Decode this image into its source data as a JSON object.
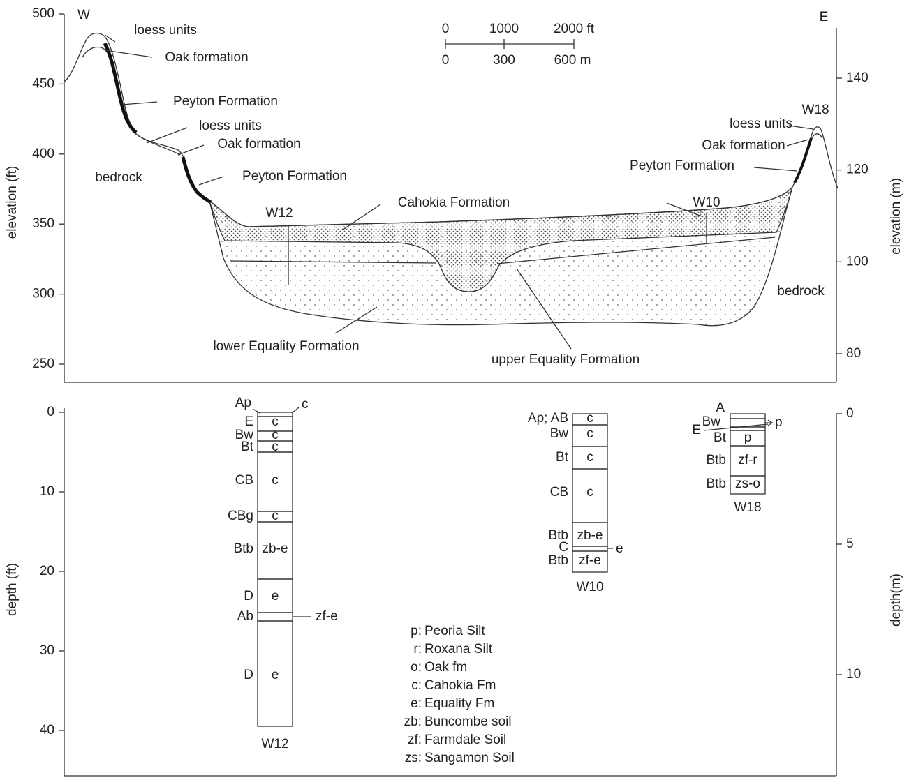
{
  "cross_section": {
    "left_axis": {
      "label": "elevation (ft)",
      "ticks": [
        500,
        450,
        400,
        350,
        300,
        250
      ]
    },
    "right_axis": {
      "label": "elevation (m)",
      "ticks": [
        140,
        120,
        100,
        80
      ]
    },
    "west": "W",
    "east": "E",
    "scale_bar": {
      "feet": [
        "0",
        "1000",
        "2000 ft"
      ],
      "meters": [
        "0",
        "300",
        "600 m"
      ]
    },
    "labels": [
      "loess units",
      "Oak formation",
      "Peyton Formation",
      "loess units",
      "Oak formation",
      "bedrock",
      "Peyton Formation",
      "Cahokia Formation",
      "W12",
      "W10",
      "lower Equality Formation",
      "upper Equality Formation",
      "bedrock",
      "W18",
      "loess units",
      "Oak formation",
      "Peyton Formation"
    ]
  },
  "profiles": {
    "left_axis": {
      "label": "depth (ft)",
      "ticks": [
        0,
        10,
        20,
        30,
        40
      ]
    },
    "right_axis": {
      "label": "depth(m)",
      "ticks": [
        0,
        5,
        10
      ]
    },
    "columns": [
      {
        "name": "W12",
        "horizons": [
          {
            "horizon": "Ap",
            "unit": "c"
          },
          {
            "horizon": "E",
            "unit": "c"
          },
          {
            "horizon": "Bw",
            "unit": "c"
          },
          {
            "horizon": "Bt",
            "unit": "c"
          },
          {
            "horizon": "CB",
            "unit": "c"
          },
          {
            "horizon": "CBg",
            "unit": "c"
          },
          {
            "horizon": "Btb",
            "unit": "zb-e"
          },
          {
            "horizon": "D",
            "unit": "e"
          },
          {
            "horizon": "Ab",
            "unit": "zf-e"
          },
          {
            "horizon": "D",
            "unit": "e"
          }
        ]
      },
      {
        "name": "W10",
        "horizons": [
          {
            "horizon": "Ap; AB",
            "unit": "c"
          },
          {
            "horizon": "Bw",
            "unit": "c"
          },
          {
            "horizon": "Bt",
            "unit": "c"
          },
          {
            "horizon": "CB",
            "unit": "c"
          },
          {
            "horizon": "Btb",
            "unit": "zb-e"
          },
          {
            "horizon": "C",
            "unit": "e"
          },
          {
            "horizon": "Btb",
            "unit": "zf-e"
          }
        ]
      },
      {
        "name": "W18",
        "horizons": [
          {
            "horizon": "A"
          },
          {
            "horizon": "Bw",
            "unit": "p"
          },
          {
            "horizon": "E"
          },
          {
            "horizon": "Bt",
            "unit": "p"
          },
          {
            "horizon": "Btb",
            "unit": "zf-r"
          },
          {
            "horizon": "Btb",
            "unit": "zs-o"
          }
        ]
      }
    ],
    "legend": [
      {
        "code": "p:",
        "name": "Peoria Silt"
      },
      {
        "code": "r:",
        "name": "Roxana Silt"
      },
      {
        "code": "o:",
        "name": "Oak fm"
      },
      {
        "code": "c:",
        "name": "Cahokia Fm"
      },
      {
        "code": "e:",
        "name": "Equality Fm"
      },
      {
        "code": "zb:",
        "name": "Buncombe soil"
      },
      {
        "code": "zf:",
        "name": "Farmdale Soil"
      },
      {
        "code": "zs:",
        "name": "Sangamon Soil"
      }
    ]
  }
}
